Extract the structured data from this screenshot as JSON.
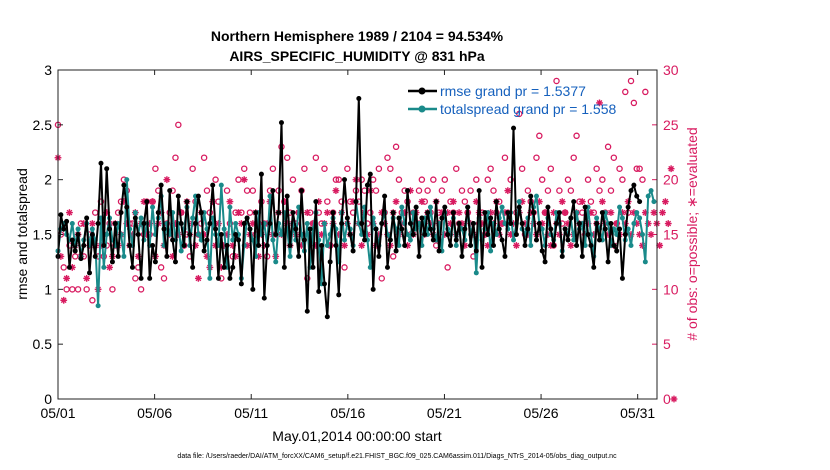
{
  "chart_data": {
    "type": "line",
    "title": "Northern Hemisphere 1989 / 2104 = 94.534%",
    "subtitle": "AIRS_SPECIFIC_HUMIDITY @ 831 hPa",
    "xlabel": "May.01,2014 00:00:00 start",
    "ylabel": "rmse and totalspread",
    "y2label": "# of obs: o=possible; ∗=evaluated",
    "footnote": "data file: /Users/raeder/DAI/ATM_forcXX/CAM6_setup/f.e21.FHIST_BGC.f09_025.CAM6assim.011/Diags_NTrS_2014-05/obs_diag_output.nc",
    "xlim": [
      1,
      32
    ],
    "ylim": [
      0,
      3
    ],
    "y2lim": [
      0,
      30
    ],
    "x_ticks": [
      1,
      6,
      11,
      16,
      21,
      26,
      31
    ],
    "x_tick_labels": [
      "05/01",
      "05/06",
      "05/11",
      "05/16",
      "05/21",
      "05/26",
      "05/31"
    ],
    "y_ticks": [
      0,
      0.5,
      1,
      1.5,
      2,
      2.5,
      3
    ],
    "y_tick_labels": [
      "0",
      "0.5",
      "1",
      "1.5",
      "2",
      "2.5",
      "3"
    ],
    "y2_ticks": [
      0,
      5,
      10,
      15,
      20,
      25,
      30
    ],
    "y2_tick_labels": [
      "0",
      "5",
      "10",
      "15",
      "20",
      "25",
      "30"
    ],
    "colors": {
      "rmse": "#000000",
      "spread": "#1a8a8a",
      "obs": "#d81b60",
      "legend_text": "#1560bd"
    },
    "legend_position": "top-right",
    "series": [
      {
        "name": "rmse grand pr = 1.5377",
        "color": "#000000",
        "values": [
          1.3,
          1.68,
          1.55,
          1.62,
          1.2,
          1.45,
          1.35,
          1.5,
          1.28,
          1.4,
          1.65,
          1.15,
          1.5,
          1.3,
          1.6,
          2.15,
          1.4,
          2.1,
          1.55,
          1.25,
          1.6,
          1.3,
          1.7,
          1.95,
          1.75,
          1.4,
          1.2,
          1.65,
          1.5,
          1.1,
          1.6,
          1.8,
          1.1,
          1.4,
          1.25,
          1.7,
          1.95,
          1.55,
          1.3,
          1.9,
          1.45,
          1.25,
          1.85,
          1.6,
          1.4,
          1.8,
          1.5,
          1.2,
          1.6,
          1.85,
          1.7,
          1.35,
          1.45,
          1.6,
          1.95,
          1.55,
          1.1,
          1.5,
          1.2,
          1.4,
          1.1,
          1.2,
          1.5,
          1.45,
          1.05,
          1.6,
          1.65,
          1.55,
          1.0,
          1.7,
          1.4,
          2.05,
          0.92,
          1.4,
          1.6,
          1.9,
          1.5,
          1.7,
          2.52,
          1.2,
          1.85,
          1.4,
          1.7,
          1.55,
          1.3,
          1.9,
          1.45,
          0.8,
          1.55,
          1.2,
          1.8,
          0.98,
          1.4,
          1.05,
          0.75,
          1.25,
          1.7,
          1.4,
          0.95,
          1.6,
          2.0,
          1.65,
          1.5,
          1.35,
          1.8,
          2.74,
          1.6,
          1.45,
          1.95,
          2.05,
          1.0,
          1.55,
          1.3,
          1.6,
          1.85,
          1.2,
          1.45,
          1.7,
          1.35,
          1.65,
          1.55,
          1.4,
          1.9,
          1.6,
          1.5,
          1.75,
          1.3,
          1.65,
          1.5,
          1.7,
          1.55,
          1.45,
          1.8,
          1.35,
          1.65,
          1.75,
          1.5,
          1.4,
          1.7,
          1.45,
          1.6,
          1.3,
          1.55,
          1.75,
          1.4,
          1.6,
          1.35,
          1.9,
          1.2,
          1.7,
          1.5,
          1.65,
          1.4,
          1.8,
          1.55,
          1.45,
          1.3,
          1.7,
          1.6,
          2.47,
          1.5,
          1.75,
          1.6,
          1.4,
          1.55,
          1.85,
          1.7,
          1.45,
          1.6,
          1.35,
          1.25,
          1.75,
          1.55,
          1.4,
          1.6,
          1.7,
          1.3,
          1.55,
          1.45,
          1.65,
          1.8,
          1.4,
          1.6,
          1.3,
          1.75,
          1.5,
          1.4,
          1.2,
          1.6,
          1.45,
          1.7,
          1.55,
          1.25,
          1.6,
          1.4,
          1.35,
          1.55,
          1.1,
          1.5,
          1.75,
          1.9,
          1.95,
          1.85,
          1.8
        ]
      },
      {
        "name": "totalspread grand pr = 1.558",
        "color": "#1a8a8a",
        "values": [
          1.35,
          1.55,
          1.6,
          1.5,
          1.45,
          1.6,
          1.4,
          1.55,
          1.3,
          1.45,
          1.6,
          1.4,
          1.55,
          1.45,
          0.85,
          1.65,
          1.2,
          1.5,
          1.65,
          1.45,
          1.4,
          1.6,
          1.5,
          1.3,
          2.0,
          1.55,
          1.4,
          1.7,
          1.5,
          1.65,
          1.45,
          1.6,
          1.4,
          1.75,
          1.5,
          1.65,
          1.85,
          1.4,
          1.6,
          1.5,
          1.7,
          1.45,
          1.6,
          1.35,
          1.55,
          1.75,
          1.4,
          1.65,
          1.85,
          1.5,
          1.45,
          1.7,
          1.55,
          1.1,
          1.65,
          1.5,
          1.4,
          1.95,
          1.55,
          1.2,
          1.75,
          1.45,
          1.6,
          1.5,
          1.1,
          1.4,
          1.65,
          1.55,
          1.45,
          1.3,
          1.7,
          1.5,
          1.6,
          1.4,
          1.85,
          1.45,
          1.25,
          1.6,
          1.5,
          1.7,
          1.55,
          1.3,
          1.6,
          1.45,
          1.75,
          1.5,
          1.35,
          1.6,
          1.2,
          1.55,
          1.7,
          1.45,
          1.05,
          1.6,
          1.4,
          1.5,
          1.65,
          1.55,
          1.25,
          1.7,
          1.45,
          1.6,
          1.55,
          1.4,
          1.8,
          1.6,
          1.5,
          1.75,
          1.45,
          1.2,
          1.65,
          1.55,
          1.4,
          1.6,
          1.7,
          1.5,
          1.45,
          1.65,
          1.55,
          1.4,
          1.75,
          1.6,
          1.5,
          1.45,
          1.7,
          1.55,
          1.6,
          1.4,
          1.65,
          1.5,
          1.75,
          1.55,
          1.45,
          1.6,
          1.35,
          1.7,
          1.55,
          1.5,
          1.65,
          1.4,
          1.6,
          1.55,
          1.45,
          1.75,
          1.5,
          1.6,
          1.15,
          1.65,
          1.45,
          1.55,
          1.7,
          1.35,
          1.6,
          1.5,
          1.65,
          1.75,
          1.6,
          1.55,
          1.7,
          1.45,
          1.6,
          1.8,
          1.55,
          1.5,
          1.65,
          1.4,
          1.75,
          1.85,
          1.6,
          1.55,
          1.4,
          1.65,
          1.5,
          1.45,
          1.7,
          1.6,
          1.35,
          1.55,
          1.5,
          1.65,
          1.45,
          1.7,
          1.55,
          1.6,
          1.4,
          1.75,
          1.5,
          1.3,
          1.65,
          1.55,
          1.45,
          1.7,
          1.6,
          1.4,
          1.55,
          1.5,
          1.75,
          1.65,
          1.45,
          1.55,
          1.4,
          1.6,
          1.7,
          1.65,
          1.5,
          1.25,
          1.85,
          1.9,
          1.8
        ]
      }
    ],
    "obs_possible": [
      25,
      15,
      12,
      10,
      14,
      10,
      13,
      10,
      16,
      13,
      10,
      15,
      9,
      17,
      13,
      18,
      13,
      14,
      16,
      10,
      14,
      17,
      18,
      20,
      19,
      16,
      16,
      11,
      12,
      10,
      15,
      18,
      15,
      18,
      21,
      19,
      12,
      11,
      16,
      17,
      19,
      22,
      25,
      17,
      14,
      15,
      13,
      21,
      18,
      15,
      16,
      22,
      19,
      17,
      16,
      20,
      18,
      11,
      14,
      19,
      16,
      13,
      17,
      20,
      17,
      21,
      19,
      17,
      19,
      15,
      16,
      18,
      16,
      13,
      19,
      21,
      15,
      19,
      23,
      18,
      22,
      17,
      20,
      16,
      17,
      19,
      21,
      11,
      17,
      16,
      22,
      17,
      16,
      21,
      18,
      14,
      17,
      20,
      20,
      18,
      12,
      21,
      18,
      17,
      19,
      18,
      20,
      19,
      16,
      17,
      20,
      19,
      21,
      11,
      17,
      22,
      21,
      13,
      23,
      20,
      17,
      19,
      18,
      15,
      17,
      16,
      19,
      20,
      18,
      19,
      17,
      20,
      14,
      17,
      19,
      20,
      12,
      18,
      17,
      21,
      16,
      19,
      18,
      17,
      19,
      13,
      20,
      16,
      17,
      15,
      20,
      21,
      19,
      17,
      18,
      16,
      22,
      17,
      20,
      15,
      17,
      26,
      21,
      15,
      19,
      18,
      17,
      22,
      24,
      20,
      17,
      19,
      21,
      14,
      29,
      19,
      16,
      17,
      20,
      19,
      22,
      24,
      18,
      17,
      15,
      20,
      18,
      17,
      21,
      19,
      20,
      17,
      23,
      19,
      22,
      16,
      21,
      20,
      28,
      17,
      29,
      27,
      21,
      21,
      20,
      28
    ],
    "obs_evaluated": [
      22,
      13,
      9,
      11,
      17,
      12,
      14,
      15,
      13,
      16,
      11,
      14,
      16,
      14,
      10,
      14,
      15,
      17,
      12,
      13,
      16,
      14,
      15,
      18,
      16,
      14,
      15,
      17,
      13,
      16,
      18,
      15,
      16,
      18,
      13,
      16,
      17,
      14,
      20,
      15,
      13,
      16,
      15,
      17,
      14,
      18,
      15,
      16,
      14,
      11,
      17,
      15,
      13,
      12,
      18,
      14,
      16,
      12,
      14,
      15,
      18,
      14,
      13,
      17,
      16,
      20,
      14,
      15,
      16,
      17,
      13,
      15,
      14,
      16,
      18,
      15,
      13,
      17,
      15,
      18,
      16,
      14,
      16,
      15,
      17,
      14,
      15,
      17,
      15,
      16,
      14,
      18,
      15,
      16,
      17,
      14,
      16,
      19,
      15,
      17,
      14,
      16,
      15,
      18,
      20,
      16,
      14,
      17,
      15,
      19,
      16,
      14,
      15,
      17,
      16,
      15,
      14,
      17,
      18,
      15,
      16,
      17,
      14,
      19,
      15,
      17,
      16,
      18,
      15,
      17,
      16,
      15,
      18,
      16,
      17,
      15,
      17,
      16,
      18,
      15,
      17,
      16,
      14,
      17,
      16,
      15,
      18,
      17,
      16,
      15,
      14,
      17,
      16,
      18,
      15,
      16,
      17,
      19,
      15,
      16,
      14,
      17,
      18,
      16,
      15,
      17,
      16,
      15,
      18,
      16,
      17,
      15,
      14,
      17,
      16,
      15,
      18,
      17,
      16,
      14,
      15,
      17,
      16,
      18,
      15,
      16,
      17,
      15,
      16,
      27,
      18,
      16,
      15,
      17,
      14,
      16,
      15,
      17,
      16,
      18,
      15,
      17,
      16,
      15,
      14,
      17,
      16,
      15,
      17,
      16,
      14,
      17,
      18,
      16,
      21,
      0
    ]
  }
}
